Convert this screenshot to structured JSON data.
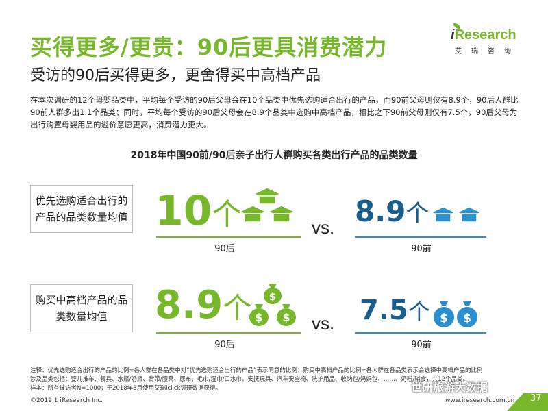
{
  "header": {
    "title": "买得更多/更贵：90后更具消费潜力",
    "subtitle": "受访的90后买得更多，更舍得买中高档产品"
  },
  "logo": {
    "brand_i": "i",
    "brand_rest": "Research",
    "cn": "艾瑞咨询"
  },
  "intro": "在本次调研的12个母婴品类中，平均每个受访的90后父母会在10个品类中优先选购适合出行的产品，而90前父母则仅有8.9个，90后人群比90前人群多出1.1个品类；同时，平均每个受访的90后父母会在8.9个品类中选购中高档产品，相比之下90前父母则仅有7.5个，90后父母为出行购置母婴用品的溢价意愿更高，消费潜力更大。",
  "chart_title": "2018年中国90前/90后亲子出行人群购买各类出行产品的品类数量",
  "rows": [
    {
      "label": "优先选购适合出行的产品的品类数量均值",
      "left_value": "10",
      "left_unit": "个",
      "left_tag": "90后",
      "vs": "vs.",
      "right_value": "8.9",
      "right_unit": "个",
      "right_tag": "90前",
      "icon": "graduation-cap-icon"
    },
    {
      "label": "购买中高档产品的品类数量均值",
      "left_value": "8.9",
      "left_unit": "个",
      "left_tag": "90后",
      "vs": "vs.",
      "right_value": "7.5",
      "right_unit": "个",
      "right_tag": "90前",
      "icon": "money-bag-icon"
    }
  ],
  "chart_data": {
    "type": "table",
    "columns": [
      "90后",
      "90前"
    ],
    "rows": [
      {
        "metric": "优先选购适合出行的产品的品类数量均值",
        "values": [
          10,
          8.9
        ]
      },
      {
        "metric": "购买中高档产品的品类数量均值",
        "values": [
          8.9,
          7.5
        ]
      }
    ]
  },
  "footnote": {
    "line1": "注释：优先选购适合出行的产品的比例=各人群在各品类中对“优先选购适合出行的产品”表示同意的比例；购买中高档产品的比例=各人群在各品类表示会选择中高档产品的比例",
    "line2": "涉及品类包括：婴儿推车、餐具、水瓶/奶瓶、背带/腰凳、尿布、毛巾/湿巾/口水巾、安抚玩具、汽车安全椅、洗护用品、收纳包/妈妈包、……、奶粉/辅食，共12个品类。",
    "line3": "样本：所有被访者N=1000；于2018年8月使用艾瑞iclick调研数据获得。"
  },
  "copyright": "©2019.1 iResearch Inc.",
  "url": "www.iresearch.com.cn",
  "page_number": "37",
  "watermark": "世研旅游大数据",
  "colors": {
    "accent_green": "#76b82a",
    "accent_blue": "#1a5e8e",
    "icon_blue": "#2a8ecf"
  }
}
